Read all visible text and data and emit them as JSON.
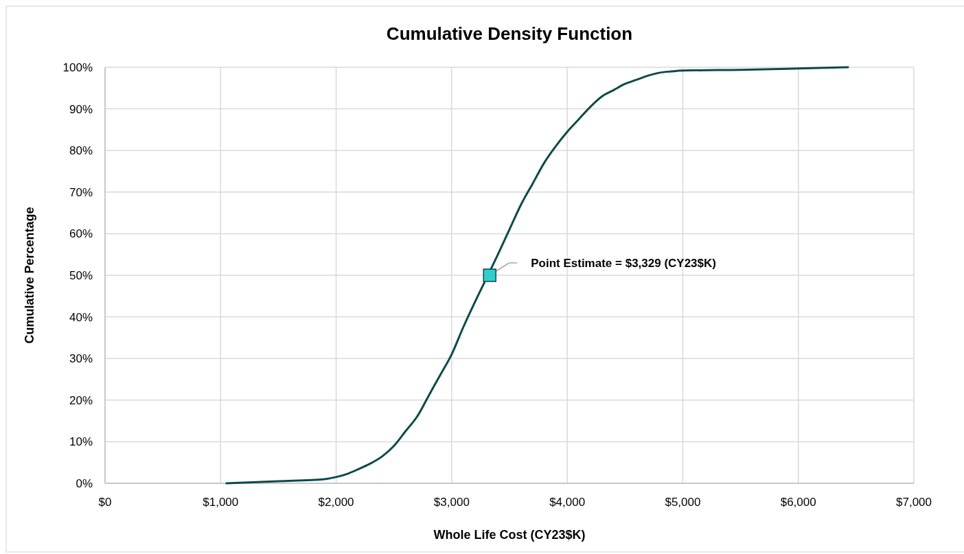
{
  "chart_data": {
    "type": "line",
    "title": "Cumulative Density Function",
    "xlabel": "Whole Life Cost (CY23$K)",
    "ylabel": "Cumulative Percentage",
    "xlim": [
      0,
      7000
    ],
    "ylim": [
      0,
      100
    ],
    "xticks": [
      {
        "value": 0,
        "label": "$0"
      },
      {
        "value": 1000,
        "label": "$1,000"
      },
      {
        "value": 2000,
        "label": "$2,000"
      },
      {
        "value": 3000,
        "label": "$3,000"
      },
      {
        "value": 4000,
        "label": "$4,000"
      },
      {
        "value": 5000,
        "label": "$5,000"
      },
      {
        "value": 6000,
        "label": "$6,000"
      },
      {
        "value": 7000,
        "label": "$7,000"
      }
    ],
    "yticks": [
      {
        "value": 0,
        "label": "0%"
      },
      {
        "value": 10,
        "label": "10%"
      },
      {
        "value": 20,
        "label": "20%"
      },
      {
        "value": 30,
        "label": "30%"
      },
      {
        "value": 40,
        "label": "40%"
      },
      {
        "value": 50,
        "label": "50%"
      },
      {
        "value": 60,
        "label": "60%"
      },
      {
        "value": 70,
        "label": "70%"
      },
      {
        "value": 80,
        "label": "80%"
      },
      {
        "value": 90,
        "label": "90%"
      },
      {
        "value": 100,
        "label": "100%"
      }
    ],
    "grid": true,
    "line_style": "solid",
    "series": [
      {
        "color": "#0b4a4a",
        "marker": "none",
        "x": [
          1050,
          1500,
          1900,
          2000,
          2100,
          2200,
          2300,
          2400,
          2500,
          2600,
          2700,
          2800,
          2900,
          3000,
          3100,
          3200,
          3400,
          3500,
          3600,
          3700,
          3800,
          3900,
          4000,
          4100,
          4200,
          4300,
          4400,
          4500,
          4600,
          4700,
          4800,
          4900,
          5000,
          5500,
          6000,
          6430
        ],
        "values": [
          0,
          0.5,
          1,
          1.5,
          2.3,
          3.5,
          4.8,
          6.5,
          9,
          12.5,
          16,
          21,
          26,
          31,
          37.5,
          43.5,
          55,
          61,
          67,
          72,
          77,
          81,
          84.5,
          87.5,
          90.5,
          93,
          94.5,
          96,
          97,
          98,
          98.7,
          99,
          99.2,
          99.4,
          99.7,
          100
        ]
      },
      {
        "type": "scatter",
        "color": "#33cccc",
        "marker": "square",
        "x": [
          3329
        ],
        "values": [
          50
        ]
      }
    ],
    "annotations": [
      {
        "text": "Point Estimate = $3,329 (CY23$K)",
        "x": 3329,
        "y": 50
      }
    ]
  }
}
